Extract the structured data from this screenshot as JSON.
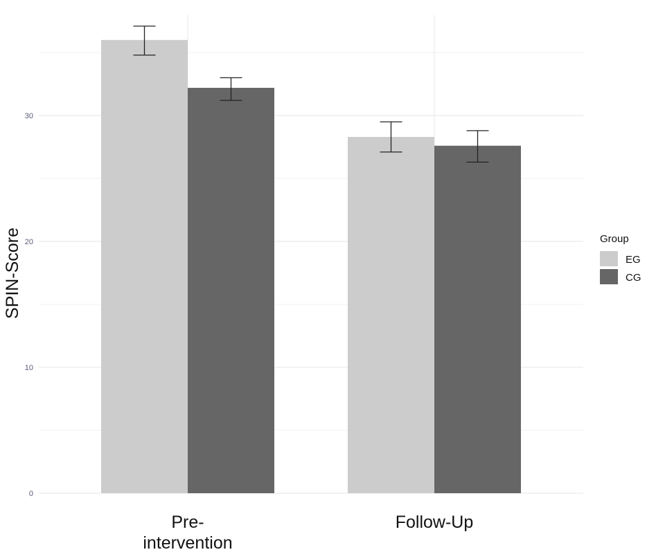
{
  "chart_data": {
    "type": "bar",
    "categories": [
      "Pre-\nintervention",
      "Follow-Up"
    ],
    "series": [
      {
        "name": "EG",
        "values": [
          36.0,
          28.3
        ],
        "error_low": [
          34.8,
          27.1
        ],
        "error_high": [
          37.1,
          29.5
        ]
      },
      {
        "name": "CG",
        "values": [
          32.2,
          27.6
        ],
        "error_low": [
          31.2,
          26.3
        ],
        "error_high": [
          33.0,
          28.8
        ]
      }
    ],
    "title": "",
    "xlabel": "",
    "ylabel": "SPIN-Score",
    "ylim": [
      0,
      38
    ],
    "yticks": [
      0,
      10,
      20,
      30
    ],
    "grid": true,
    "legend": {
      "title": "Group",
      "placement": "right"
    },
    "colors": {
      "EG": "#cccccc",
      "CG": "#666666",
      "grid": "#ebebeb",
      "errorbar": "#222222"
    }
  }
}
